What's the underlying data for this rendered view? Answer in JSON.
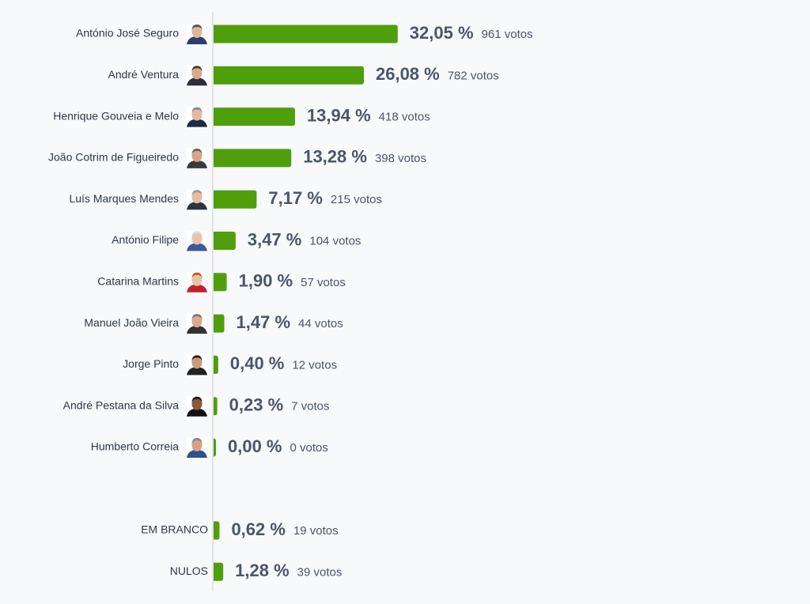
{
  "chart_data": [
    {
      "type": "bar",
      "orientation": "horizontal",
      "color": "#4f9e0c",
      "categories": [
        "António José Seguro",
        "André Ventura",
        "Henrique Gouveia e Melo",
        "João Cotrim de Figueiredo",
        "Luís Marques Mendes",
        "António Filipe",
        "Catarina Martins",
        "Manuel João Vieira",
        "Jorge Pinto",
        "André Pestana da Silva",
        "Humberto Correia"
      ],
      "values": [
        32.05,
        26.08,
        13.94,
        13.28,
        7.17,
        3.47,
        1.9,
        1.47,
        0.4,
        0.23,
        0.0
      ],
      "value_labels": [
        "32,05 %",
        "26,08 %",
        "13,94 %",
        "13,28 %",
        "7,17 %",
        "3,47 %",
        "1,90 %",
        "1,47 %",
        "0,40 %",
        "0,23 %",
        "0,00 %"
      ],
      "vote_labels": [
        "961 votos",
        "782 votos",
        "418 votos",
        "398 votos",
        "215 votos",
        "104 votos",
        "57 votos",
        "44 votos",
        "12 votos",
        "7 votos",
        "0 votos"
      ]
    },
    {
      "type": "bar",
      "orientation": "horizontal",
      "color": "#4f9e0c",
      "categories": [
        "EM BRANCO",
        "NULOS"
      ],
      "values": [
        0.62,
        1.28
      ],
      "value_labels": [
        "0,62 %",
        "1,28 %"
      ],
      "vote_labels": [
        "19 votos",
        "39 votos"
      ]
    }
  ]
}
